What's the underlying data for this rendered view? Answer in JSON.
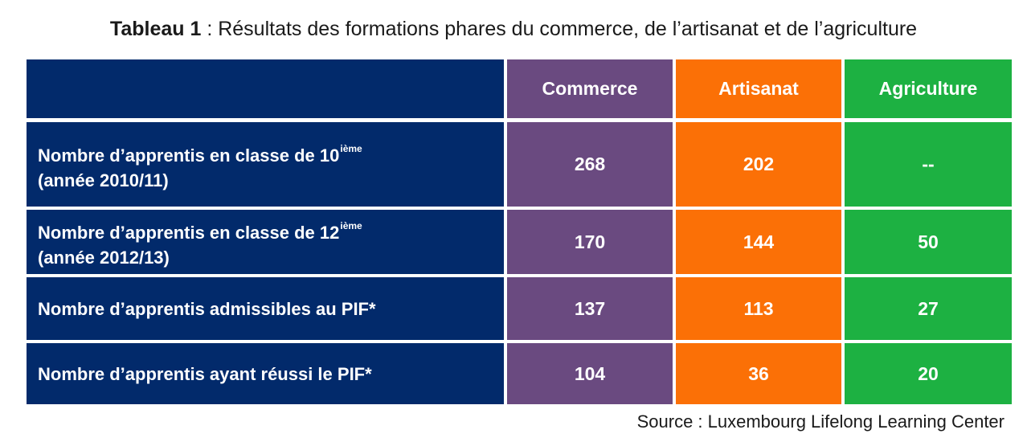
{
  "title": {
    "lead": "Tableau 1",
    "text": " : Résultats des formations phares du commerce, de l’artisanat et de l’agriculture"
  },
  "table": {
    "headers": [
      "",
      "Commerce",
      "Artisanat",
      "Agriculture"
    ],
    "rows": [
      {
        "label_main": "Nombre d’apprentis en classe de 10",
        "label_sup": "ième",
        "label_sub": "(année 2010/11)",
        "values": [
          "268",
          "202",
          "--"
        ]
      },
      {
        "label_main": "Nombre d’apprentis en classe de 12",
        "label_sup": "ième",
        "label_sub": "(année 2012/13)",
        "values": [
          "170",
          "144",
          "50"
        ]
      },
      {
        "label_main": "Nombre d’apprentis admissibles au PIF*",
        "values": [
          "137",
          "113",
          "27"
        ]
      },
      {
        "label_main": "Nombre d’apprentis ayant réussi le PIF*",
        "values": [
          "104",
          "36",
          "20"
        ]
      }
    ],
    "colors": {
      "label": "#022a6b",
      "commerce": "#6a4a80",
      "artisanat": "#fb7006",
      "agriculture": "#1db142"
    }
  },
  "source": "Source : Luxembourg Lifelong Learning Center"
}
